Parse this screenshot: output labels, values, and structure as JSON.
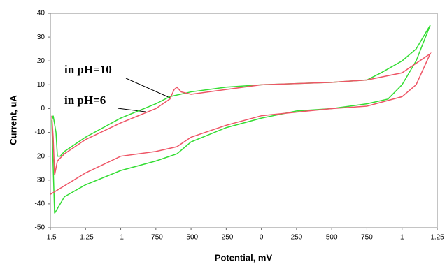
{
  "chart_data": {
    "type": "line",
    "xlabel": "Potential, mV",
    "ylabel": "Current, uA",
    "xlim": [
      -1.5,
      1.25
    ],
    "xticks": [
      -1.5,
      -1.25,
      -1,
      {
        "value": -0.75,
        "label": "-750"
      },
      {
        "value": -0.5,
        "label": "-500"
      },
      {
        "value": -0.25,
        "label": "-250"
      },
      0,
      {
        "value": 0.25,
        "label": "250"
      },
      {
        "value": 0.5,
        "label": "500"
      },
      {
        "value": 0.75,
        "label": "750"
      },
      1,
      1.25
    ],
    "ylim": [
      -50,
      40
    ],
    "yticks": [
      -50,
      -40,
      -30,
      -20,
      -10,
      0,
      10,
      20,
      30,
      40
    ],
    "series": [
      {
        "name": "in pH=10",
        "color": "#33dd33",
        "x": [
          -1.47,
          -1.4,
          -1.25,
          -1,
          -0.75,
          -0.6,
          -0.5,
          -0.25,
          0,
          0.25,
          0.5,
          0.75,
          0.9,
          1,
          1.1,
          1.2,
          1.1,
          1,
          0.85,
          0.75,
          0.5,
          0.25,
          0,
          -0.25,
          -0.5,
          -0.65,
          -0.75,
          -1,
          -1.25,
          -1.4,
          -1.43,
          -1.45,
          -1.46,
          -1.48,
          -1.49,
          -1.47
        ],
        "values": [
          -44,
          -37,
          -32,
          -26,
          -22,
          -19,
          -14,
          -8,
          -4,
          -1,
          0,
          2,
          4,
          10,
          20,
          35,
          25,
          20,
          15,
          12,
          11,
          10.5,
          10,
          9,
          7,
          5,
          2,
          -4,
          -12,
          -18,
          -20,
          -20,
          -10,
          -3,
          -5,
          -44
        ]
      },
      {
        "name": "in pH=6",
        "color": "#ee5566",
        "x": [
          -1.5,
          -1.25,
          -1,
          -0.75,
          -0.6,
          -0.5,
          -0.25,
          0,
          0.5,
          0.75,
          1,
          1.1,
          1.2,
          1,
          0.75,
          0.5,
          0,
          -0.25,
          -0.5,
          -0.57,
          -0.6,
          -0.62,
          -0.65,
          -0.75,
          -1,
          -1.25,
          -1.4,
          -1.45,
          -1.47,
          -1.48,
          -1.49
        ],
        "values": [
          -36,
          -27,
          -20,
          -18,
          -16,
          -12,
          -7,
          -3,
          0,
          1,
          5,
          10,
          23,
          15,
          12,
          11,
          10,
          8,
          6,
          7,
          9,
          8,
          4,
          0,
          -6,
          -13,
          -19,
          -22,
          -28,
          -12,
          -3
        ]
      }
    ]
  }
}
